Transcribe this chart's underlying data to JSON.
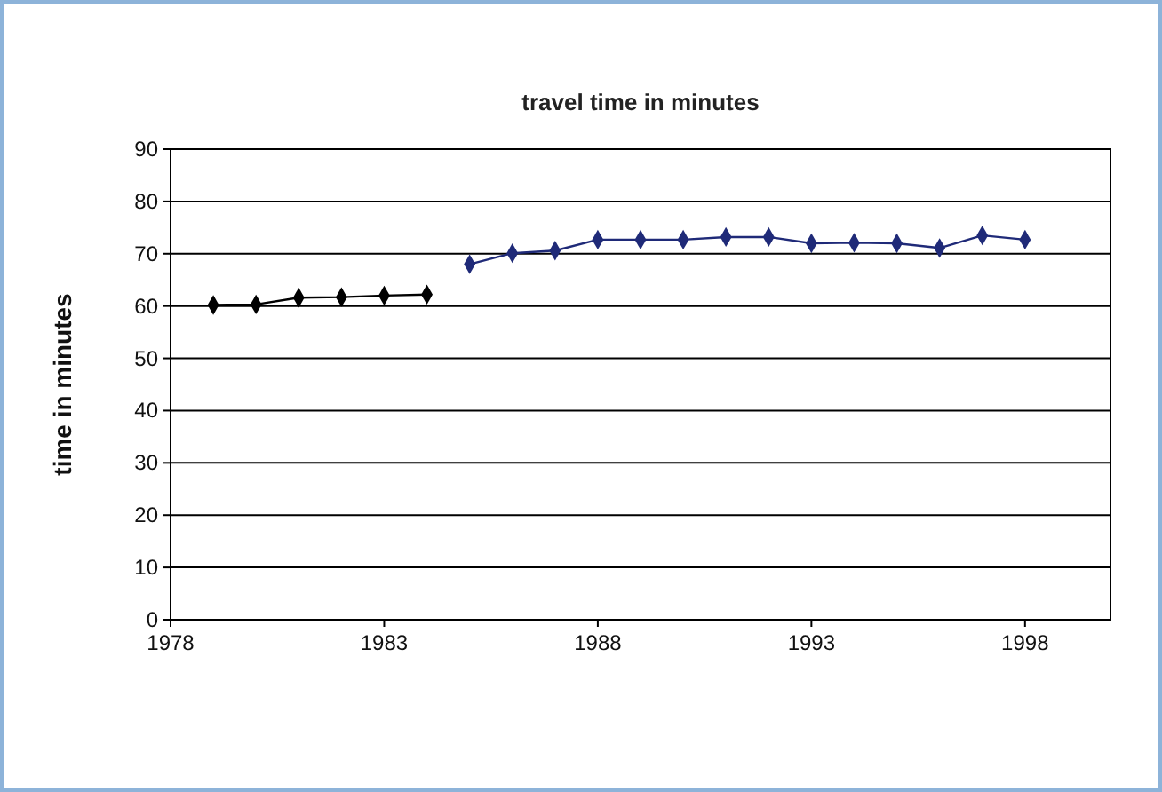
{
  "chart_data": {
    "type": "line",
    "title": "travel time in minutes",
    "ylabel": "time in minutes",
    "xlim": [
      1978,
      2000
    ],
    "xticks": [
      1978,
      1983,
      1988,
      1993,
      1998
    ],
    "ylim": [
      0,
      90
    ],
    "yticks": [
      0,
      10,
      20,
      30,
      40,
      50,
      60,
      70,
      80,
      90
    ],
    "grid": "y",
    "marker": "diamond",
    "line_style": "solid",
    "series": [
      {
        "color": "#000000",
        "x": [
          1979,
          1980,
          1981,
          1982,
          1983,
          1984
        ],
        "values": [
          60.2,
          60.3,
          61.6,
          61.7,
          62,
          62.2
        ]
      },
      {
        "color": "#1f2a78",
        "x": [
          1985,
          1986,
          1987,
          1988,
          1989,
          1990,
          1991,
          1992,
          1993,
          1994,
          1995,
          1996,
          1997,
          1998
        ],
        "values": [
          68,
          70.1,
          70.6,
          72.7,
          72.7,
          72.7,
          73.2,
          73.2,
          72,
          72.1,
          72,
          71.1,
          73.5,
          72.7
        ]
      }
    ]
  }
}
